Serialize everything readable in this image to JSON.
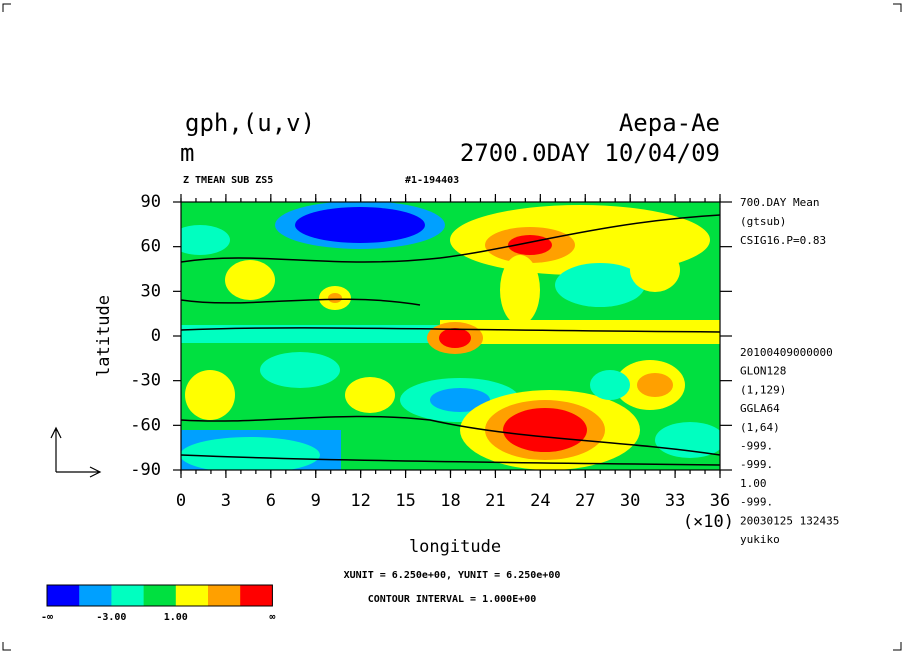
{
  "chart_data": {
    "type": "contour",
    "title": "gph,(u,v)",
    "unit": "m",
    "experiment": "Aepa-Ae",
    "time": "2700.0DAY 10/04/09",
    "subtitle_left": "Z TMEAN SUB ZS5",
    "subtitle_right": "#1-194403",
    "x_label": "longitude",
    "y_label": "latitude",
    "x_scale_note": "(×10)",
    "xlim": [
      0,
      36
    ],
    "xticks": [
      0,
      3,
      6,
      9,
      12,
      15,
      18,
      21,
      24,
      27,
      30,
      33,
      36
    ],
    "ylim": [
      -90,
      90
    ],
    "yticks": [
      90,
      60,
      30,
      0,
      -30,
      -60,
      -90
    ],
    "info_top": [
      "700.DAY Mean",
      "(gtsub)",
      "CSIG16.P=0.83"
    ],
    "info_bottom": [
      "20100409000000",
      "GLON128",
      "(1,129)",
      "GGLA64",
      "(1,64)",
      "-999.",
      "-999.",
      "1.00",
      "-999.",
      "20030125 132435",
      "yukiko"
    ],
    "units_note": "XUNIT = 6.250e+00, YUNIT = 6.250e+00",
    "contour_note": "CONTOUR INTERVAL = 1.000E+00",
    "colorbar": {
      "colors": [
        "#0000ff",
        "#00a0ff",
        "#00ffc0",
        "#00e040",
        "#ffff00",
        "#ffa000",
        "#ff0000"
      ],
      "labels": [
        "-∞",
        null,
        "-3.00",
        null,
        "1.00",
        null,
        null,
        "∞"
      ]
    }
  }
}
